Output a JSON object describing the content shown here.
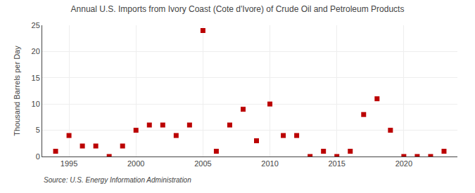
{
  "chart_data": {
    "type": "scatter",
    "title": "Annual U.S. Imports from Ivory Coast (Cote d'Ivore) of Crude Oil and Petroleum Products",
    "ylabel": "Thousand Barrels per Day",
    "annotations": [
      "Source: U.S. Energy Information Administration"
    ],
    "x": [
      1994,
      1995,
      1996,
      1997,
      1998,
      1999,
      2000,
      2001,
      2002,
      2003,
      2004,
      2005,
      2006,
      2007,
      2008,
      2009,
      2010,
      2011,
      2012,
      2013,
      2014,
      2015,
      2016,
      2017,
      2018,
      2019,
      2020,
      2021,
      2022,
      2023
    ],
    "values": [
      1,
      4,
      2,
      2,
      0,
      2,
      5,
      6,
      6,
      4,
      6,
      24,
      1,
      6,
      9,
      3,
      10,
      4,
      4,
      0,
      1,
      0,
      1,
      8,
      11,
      5,
      0,
      0,
      0,
      1
    ],
    "color": "#bb0000",
    "marker": "square",
    "xlim": [
      1993,
      2024
    ],
    "ylim": [
      0,
      25
    ],
    "xticks": [
      1995,
      2000,
      2005,
      2010,
      2015,
      2020
    ],
    "yticks": [
      0,
      5,
      10,
      15,
      20,
      25
    ],
    "grid": true
  }
}
